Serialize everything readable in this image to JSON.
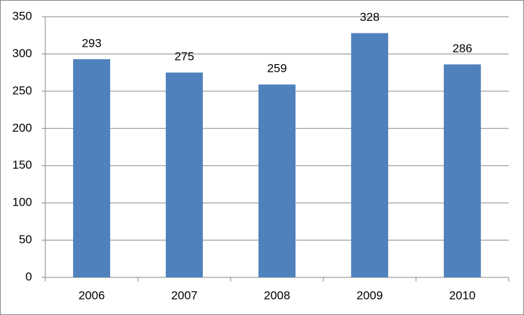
{
  "chart_data": {
    "type": "bar",
    "categories": [
      "2006",
      "2007",
      "2008",
      "2009",
      "2010"
    ],
    "values": [
      293,
      275,
      259,
      328,
      286
    ],
    "color": "#4f81bd",
    "ylim": [
      0,
      350
    ],
    "yticks": [
      0,
      50,
      100,
      150,
      200,
      250,
      300,
      350
    ],
    "grid": true
  }
}
